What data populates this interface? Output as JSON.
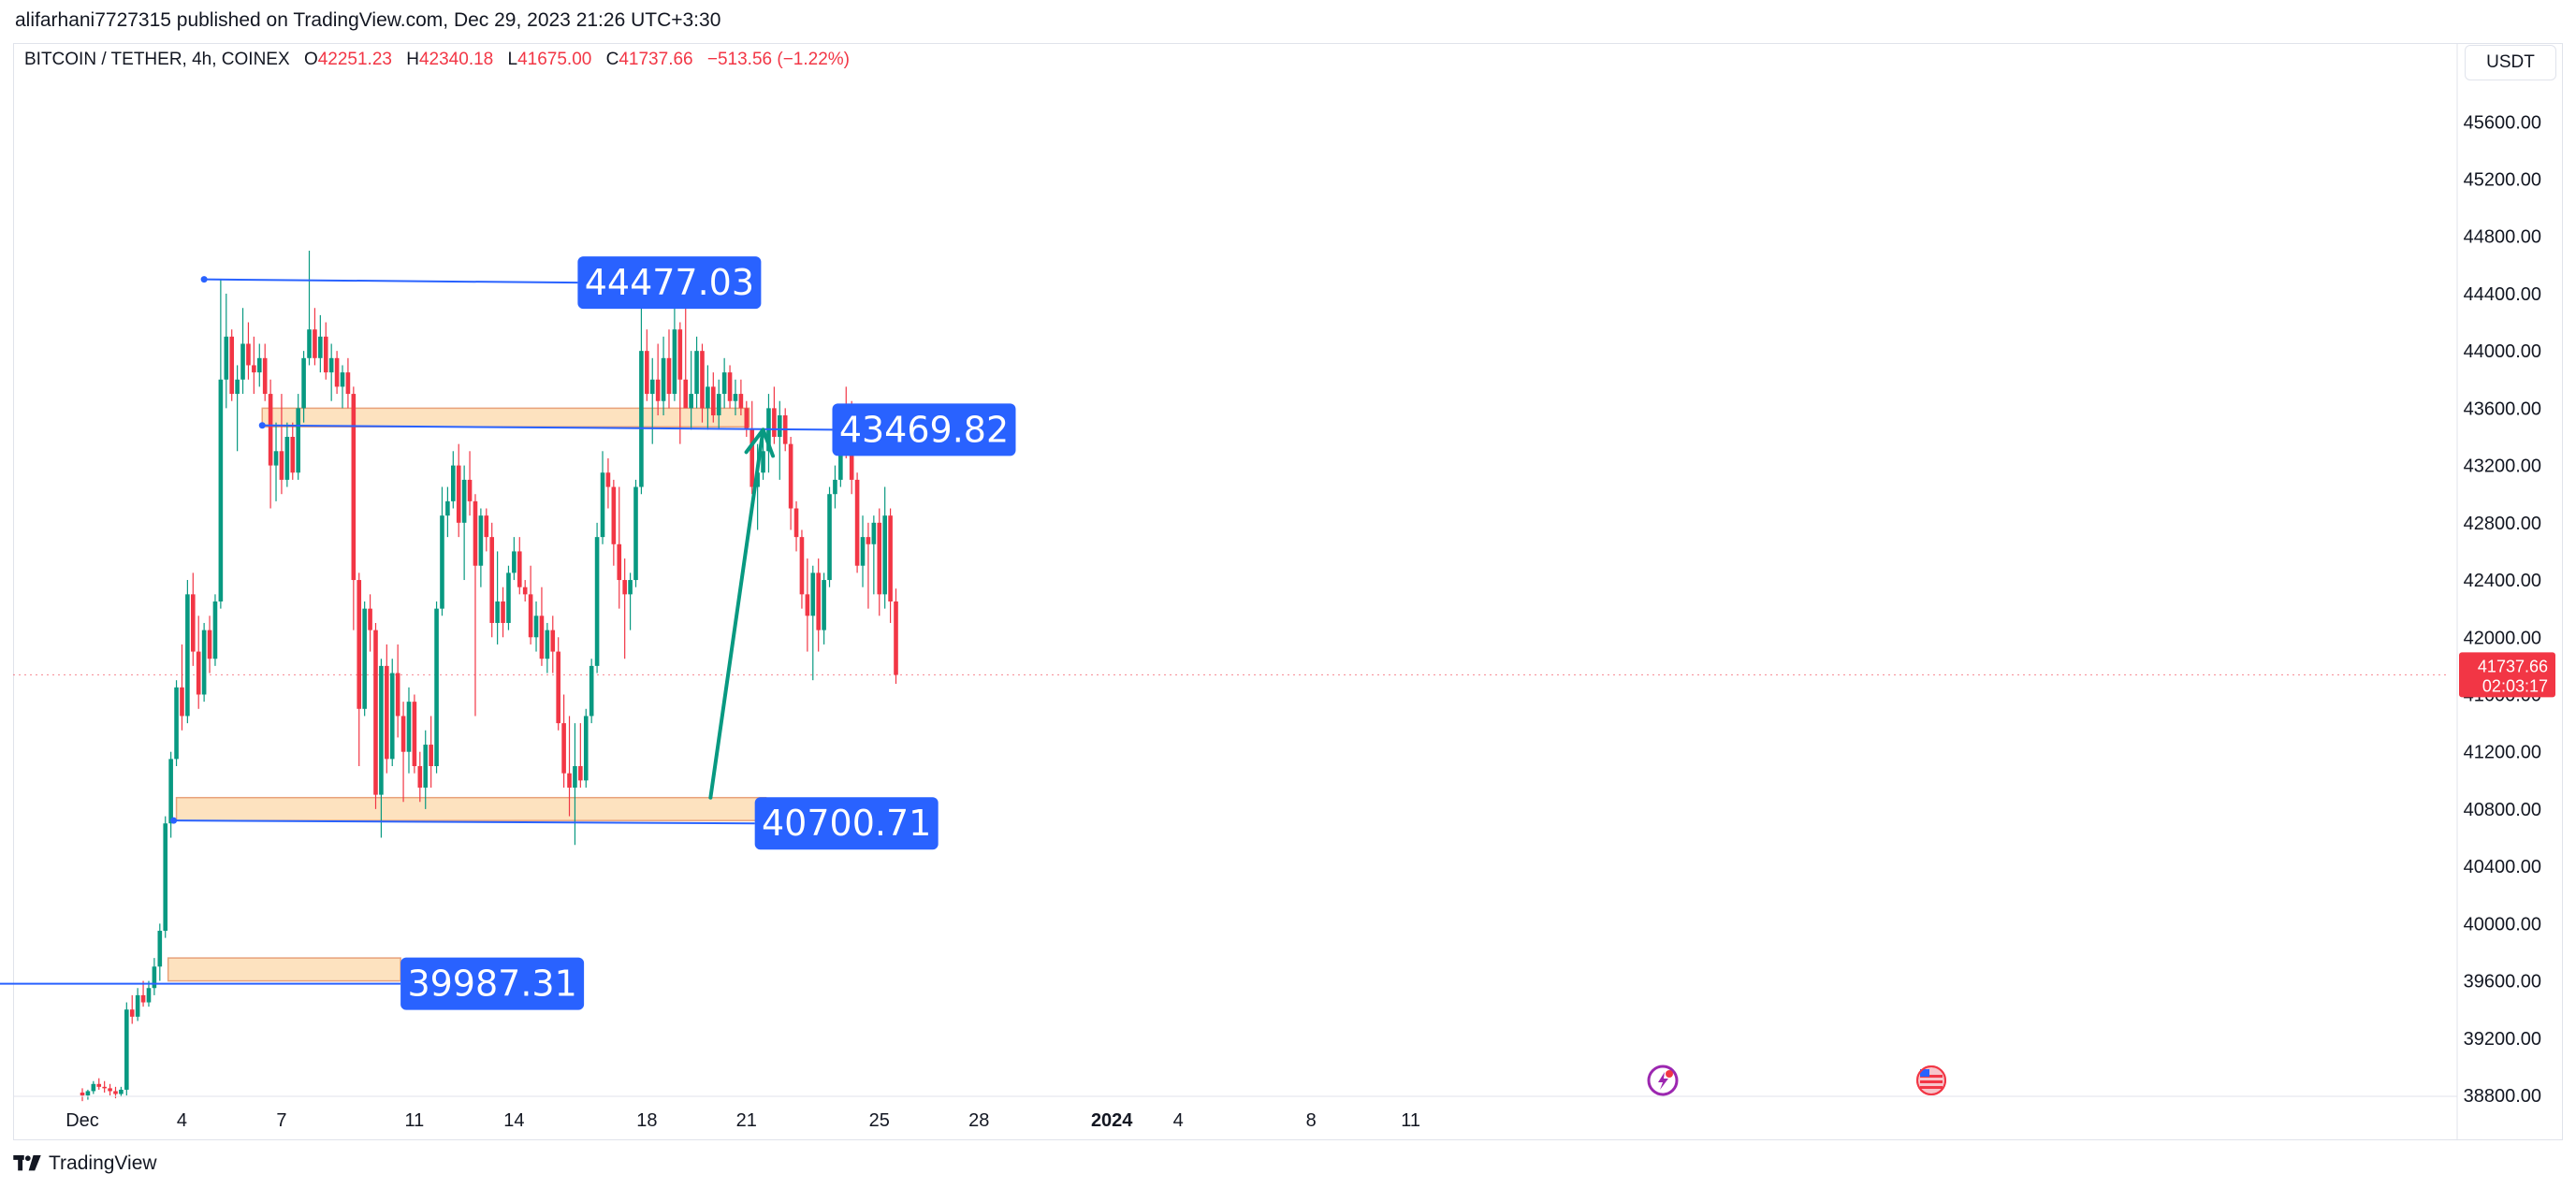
{
  "header": {
    "publisher": "alifarhani7727315 published on TradingView.com, Dec 29, 2023 21:26 UTC+3:30"
  },
  "legend": {
    "symbol": "BITCOIN / TETHER, 4h, COINEX",
    "open_label": "O",
    "open": "42251.23",
    "high_label": "H",
    "high": "42340.18",
    "low_label": "L",
    "low": "41675.00",
    "close_label": "C",
    "close": "41737.66",
    "change": "−513.56 (−1.22%)"
  },
  "currency_button": "USDT",
  "footer": {
    "logo_text": "TradingView",
    "logo_icon": "tradingview-logo-icon"
  },
  "colors": {
    "up": "#089981",
    "down": "#f23645",
    "line": "#2962ff",
    "zone_fill": "#fde2bf",
    "zone_border": "#e8a27a",
    "arrow": "#089981",
    "label_bg": "#2962ff"
  },
  "chart_data": {
    "type": "candlestick",
    "interval": "4h",
    "ylim": [
      38650,
      45850
    ],
    "y_ticks": [
      "45600.00",
      "45200.00",
      "44800.00",
      "44400.00",
      "44000.00",
      "43600.00",
      "43200.00",
      "42800.00",
      "42400.00",
      "42000.00",
      "41600.00",
      "41200.00",
      "40800.00",
      "40400.00",
      "40000.00",
      "39600.00",
      "39200.00",
      "38800.00"
    ],
    "x_ticks": [
      {
        "label": "Dec",
        "x": 0
      },
      {
        "label": "4",
        "x": 18
      },
      {
        "label": "7",
        "x": 36
      },
      {
        "label": "11",
        "x": 60
      },
      {
        "label": "14",
        "x": 78
      },
      {
        "label": "18",
        "x": 102
      },
      {
        "label": "21",
        "x": 120
      },
      {
        "label": "25",
        "x": 144
      },
      {
        "label": "28",
        "x": 162
      },
      {
        "label": "2024",
        "x": 186,
        "bold": true
      },
      {
        "label": "4",
        "x": 198
      },
      {
        "label": "8",
        "x": 222
      },
      {
        "label": "11",
        "x": 240
      }
    ],
    "last_price": {
      "value": "41737.66",
      "countdown": "02:03:17"
    },
    "candles": [
      [
        38820,
        38850,
        38760,
        38800
      ],
      [
        38800,
        38840,
        38770,
        38830
      ],
      [
        38830,
        38900,
        38810,
        38880
      ],
      [
        38880,
        38920,
        38840,
        38860
      ],
      [
        38860,
        38900,
        38820,
        38850
      ],
      [
        38850,
        38880,
        38800,
        38830
      ],
      [
        38830,
        38860,
        38780,
        38810
      ],
      [
        38810,
        38860,
        38790,
        38840
      ],
      [
        38840,
        39450,
        38800,
        39400
      ],
      [
        39400,
        39500,
        39300,
        39350
      ],
      [
        39350,
        39550,
        39320,
        39500
      ],
      [
        39500,
        39600,
        39420,
        39450
      ],
      [
        39450,
        39600,
        39420,
        39550
      ],
      [
        39550,
        39760,
        39500,
        39700
      ],
      [
        39700,
        40000,
        39600,
        39950
      ],
      [
        39950,
        40750,
        39900,
        40700
      ],
      [
        40700,
        41200,
        40600,
        41150
      ],
      [
        41150,
        41700,
        41100,
        41650
      ],
      [
        41650,
        41950,
        41350,
        41450
      ],
      [
        41450,
        42400,
        41400,
        42300
      ],
      [
        42300,
        42450,
        41800,
        41900
      ],
      [
        41900,
        42150,
        41500,
        41600
      ],
      [
        41600,
        42100,
        41550,
        42050
      ],
      [
        42050,
        42150,
        41750,
        41850
      ],
      [
        41850,
        42300,
        41800,
        42250
      ],
      [
        42250,
        44500,
        42200,
        43800
      ],
      [
        43800,
        44400,
        43600,
        44100
      ],
      [
        44100,
        44150,
        43650,
        43700
      ],
      [
        43700,
        43900,
        43300,
        43800
      ],
      [
        43800,
        44300,
        43700,
        44050
      ],
      [
        44050,
        44200,
        43800,
        43900
      ],
      [
        43900,
        44100,
        43700,
        43850
      ],
      [
        43850,
        44050,
        43750,
        43950
      ],
      [
        43950,
        44050,
        43650,
        43700
      ],
      [
        43700,
        43800,
        42900,
        43200
      ],
      [
        43200,
        43500,
        42950,
        43300
      ],
      [
        43300,
        43700,
        43000,
        43100
      ],
      [
        43100,
        43500,
        43050,
        43400
      ],
      [
        43400,
        43500,
        43100,
        43150
      ],
      [
        43150,
        43700,
        43100,
        43600
      ],
      [
        43600,
        44000,
        43500,
        43950
      ],
      [
        43950,
        44700,
        43900,
        44150
      ],
      [
        44150,
        44300,
        43900,
        43950
      ],
      [
        43950,
        44250,
        43850,
        44100
      ],
      [
        44100,
        44200,
        43800,
        43850
      ],
      [
        43850,
        44050,
        43650,
        43950
      ],
      [
        43950,
        44000,
        43700,
        43750
      ],
      [
        43750,
        43900,
        43600,
        43850
      ],
      [
        43850,
        43950,
        43600,
        43700
      ],
      [
        43700,
        43750,
        42050,
        42400
      ],
      [
        42400,
        42450,
        41100,
        41500
      ],
      [
        41500,
        42250,
        41450,
        42200
      ],
      [
        42200,
        42300,
        41900,
        42050
      ],
      [
        42050,
        42100,
        40800,
        40900
      ],
      [
        40900,
        41850,
        40600,
        41800
      ],
      [
        41800,
        41950,
        41050,
        41150
      ],
      [
        41150,
        41850,
        41100,
        41750
      ],
      [
        41750,
        41950,
        41300,
        41450
      ],
      [
        41450,
        41550,
        40850,
        41200
      ],
      [
        41200,
        41650,
        41050,
        41550
      ],
      [
        41550,
        41600,
        41050,
        41100
      ],
      [
        41100,
        41200,
        40850,
        40950
      ],
      [
        40950,
        41350,
        40800,
        41250
      ],
      [
        41250,
        41450,
        40950,
        41100
      ],
      [
        41100,
        42250,
        41050,
        42200
      ],
      [
        42200,
        43050,
        42150,
        42850
      ],
      [
        42850,
        43050,
        42700,
        42950
      ],
      [
        42950,
        43300,
        42900,
        43200
      ],
      [
        43200,
        43350,
        42700,
        42800
      ],
      [
        42800,
        43200,
        42400,
        43100
      ],
      [
        43100,
        43300,
        42850,
        42950
      ],
      [
        42950,
        43000,
        41450,
        42500
      ],
      [
        42500,
        42900,
        42350,
        42850
      ],
      [
        42850,
        42900,
        42600,
        42700
      ],
      [
        42700,
        42800,
        42000,
        42100
      ],
      [
        42100,
        42600,
        41950,
        42250
      ],
      [
        42250,
        42350,
        42000,
        42100
      ],
      [
        42100,
        42500,
        42050,
        42450
      ],
      [
        42450,
        42700,
        42400,
        42600
      ],
      [
        42600,
        42700,
        42300,
        42350
      ],
      [
        42350,
        42400,
        42250,
        42300
      ],
      [
        42300,
        42500,
        41950,
        42000
      ],
      [
        42000,
        42250,
        41900,
        42150
      ],
      [
        42150,
        42350,
        41800,
        41850
      ],
      [
        41850,
        42100,
        41750,
        42050
      ],
      [
        42050,
        42150,
        41750,
        41900
      ],
      [
        41900,
        42000,
        41350,
        41400
      ],
      [
        41400,
        41600,
        40950,
        41050
      ],
      [
        41050,
        41450,
        40750,
        40950
      ],
      [
        40950,
        41400,
        40550,
        41100
      ],
      [
        41100,
        41400,
        40950,
        41000
      ],
      [
        41000,
        41500,
        40950,
        41450
      ],
      [
        41450,
        41850,
        41400,
        41800
      ],
      [
        41800,
        42800,
        41750,
        42700
      ],
      [
        42700,
        43300,
        42650,
        43150
      ],
      [
        43150,
        43250,
        42900,
        43050
      ],
      [
        43050,
        43100,
        42500,
        42650
      ],
      [
        42650,
        43050,
        42200,
        42400
      ],
      [
        42400,
        42550,
        41850,
        42300
      ],
      [
        42300,
        42450,
        42050,
        42400
      ],
      [
        42400,
        43100,
        42350,
        43050
      ],
      [
        43050,
        44300,
        43000,
        44000
      ],
      [
        44000,
        44150,
        43650,
        43700
      ],
      [
        43700,
        43950,
        43350,
        43800
      ],
      [
        43800,
        44050,
        43550,
        43650
      ],
      [
        43650,
        44100,
        43550,
        43950
      ],
      [
        43950,
        44150,
        43600,
        43700
      ],
      [
        43700,
        44300,
        43650,
        44150
      ],
      [
        44150,
        44200,
        43350,
        43800
      ],
      [
        43800,
        44400,
        43650,
        43600
      ],
      [
        43600,
        44000,
        43450,
        43700
      ],
      [
        43700,
        44100,
        43600,
        44000
      ],
      [
        44000,
        44050,
        43500,
        43600
      ],
      [
        43600,
        43900,
        43450,
        43750
      ],
      [
        43750,
        43850,
        43500,
        43550
      ],
      [
        43550,
        43800,
        43450,
        43700
      ],
      [
        43700,
        43950,
        43600,
        43850
      ],
      [
        43850,
        43900,
        43600,
        43650
      ],
      [
        43650,
        43800,
        43550,
        43700
      ],
      [
        43700,
        43800,
        43550,
        43600
      ],
      [
        43600,
        43650,
        43400,
        43450
      ],
      [
        43450,
        43650,
        43000,
        43050
      ],
      [
        43050,
        43350,
        42750,
        43150
      ],
      [
        43150,
        43450,
        43100,
        43300
      ],
      [
        43300,
        43700,
        43150,
        43600
      ],
      [
        43600,
        43750,
        43350,
        43400
      ],
      [
        43400,
        43650,
        43100,
        43550
      ],
      [
        43550,
        43600,
        43300,
        43350
      ],
      [
        43350,
        43400,
        42750,
        42900
      ],
      [
        42900,
        42950,
        42600,
        42700
      ],
      [
        42700,
        42750,
        42200,
        42300
      ],
      [
        42300,
        42550,
        41900,
        42150
      ],
      [
        42150,
        42500,
        41700,
        42450
      ],
      [
        42450,
        42550,
        41900,
        42050
      ],
      [
        42050,
        42450,
        41950,
        42400
      ],
      [
        42400,
        43050,
        42350,
        43000
      ],
      [
        43000,
        43200,
        42900,
        43100
      ],
      [
        43100,
        43500,
        43050,
        43400
      ],
      [
        43400,
        43750,
        43250,
        43350
      ],
      [
        43350,
        43650,
        43000,
        43100
      ],
      [
        43100,
        43150,
        42450,
        42500
      ],
      [
        42500,
        42850,
        42350,
        42700
      ],
      [
        42700,
        42800,
        42200,
        42650
      ],
      [
        42650,
        42850,
        42300,
        42800
      ],
      [
        42800,
        42900,
        42150,
        42300
      ],
      [
        42300,
        43050,
        42200,
        42850
      ],
      [
        42850,
        42900,
        42100,
        42250
      ],
      [
        42250,
        42340,
        41675,
        41737
      ]
    ],
    "levels": [
      {
        "id": "top",
        "value": "44477.03",
        "x1": 22,
        "y1": 44500,
        "x2": 89.5,
        "y2": 44477
      },
      {
        "id": "mid",
        "value": "43469.82",
        "x1": 32.5,
        "y1": 43480,
        "x2": 135.5,
        "y2": 43450
      },
      {
        "id": "support",
        "value": "40700.71",
        "x1": 16.5,
        "y1": 40720,
        "x2": 121.5,
        "y2": 40700
      },
      {
        "id": "low",
        "value": "39987.31",
        "x1": -16,
        "y1": 39580,
        "x2": 57.5,
        "y2": 39580
      }
    ],
    "zones": [
      {
        "x1": 32.5,
        "x2": 120.5,
        "top": 43600,
        "bottom": 43470
      },
      {
        "x1": 17,
        "x2": 123.5,
        "top": 40880,
        "bottom": 40720
      },
      {
        "x1": 15.5,
        "x2": 57.5,
        "top": 39760,
        "bottom": 39600
      }
    ],
    "arrow": {
      "x1": 113.5,
      "y1": 40880,
      "x2": 123,
      "y2": 43450
    }
  }
}
